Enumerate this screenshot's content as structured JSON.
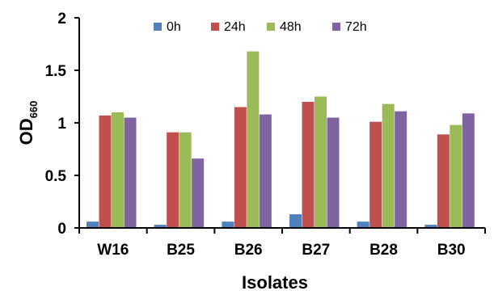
{
  "chart_data": {
    "type": "bar",
    "categories": [
      "W16",
      "B25",
      "B26",
      "B27",
      "B28",
      "B30"
    ],
    "series": [
      {
        "name": "0h",
        "color": "#4F81BD",
        "values": [
          0.06,
          0.03,
          0.06,
          0.13,
          0.06,
          0.03
        ]
      },
      {
        "name": "24h",
        "color": "#C0504D",
        "values": [
          1.07,
          0.91,
          1.15,
          1.2,
          1.01,
          0.89
        ]
      },
      {
        "name": "48h",
        "color": "#9BBB59",
        "values": [
          1.1,
          0.91,
          1.68,
          1.25,
          1.18,
          0.98
        ]
      },
      {
        "name": "72h",
        "color": "#8064A2",
        "values": [
          1.05,
          0.66,
          1.08,
          1.05,
          1.11,
          1.09
        ]
      }
    ],
    "xlabel": "Isolates",
    "ylabel": "OD",
    "ylabel_subscript": "660",
    "ylim": [
      0,
      2
    ],
    "yticks": [
      0,
      0.5,
      1,
      1.5,
      2
    ],
    "ytick_labels": [
      "0",
      "0.5",
      "1",
      "1.5",
      "2"
    ],
    "grid": false,
    "legend_position": "top"
  }
}
